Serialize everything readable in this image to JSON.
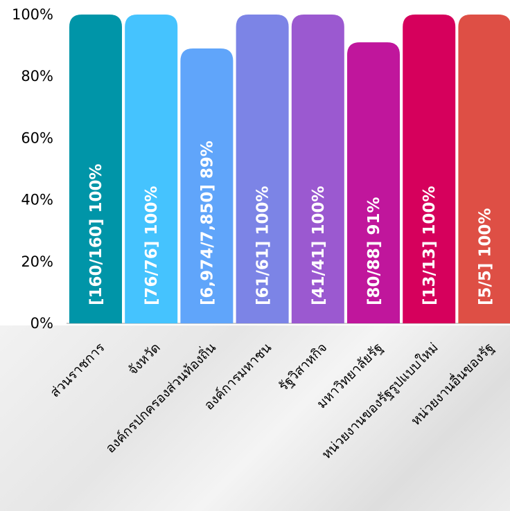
{
  "chart_data": {
    "type": "bar",
    "title": "",
    "xlabel": "",
    "ylabel": "",
    "ylim": [
      0,
      100
    ],
    "y_ticks": [
      "0%",
      "20%",
      "40%",
      "60%",
      "80%",
      "100%"
    ],
    "categories": [
      "ส่วนราชการ",
      "จังหวัด",
      "องค์กรปกครองส่วนท้องถิ่น",
      "องค์การมหาชน",
      "รัฐวิสาหกิจ",
      "มหาวิทยาลัยรัฐ",
      "หน่วยงานของรัฐรูปแบบใหม่",
      "หน่วยงานอื่นของรัฐ"
    ],
    "values": [
      100,
      100,
      89,
      100,
      100,
      91,
      100,
      100
    ],
    "data_labels": [
      "[160/160] 100%",
      "[76/76] 100%",
      "[6,974/7,850] 89%",
      "[61/61] 100%",
      "[41/41] 100%",
      "[80/88] 91%",
      "[13/13] 100%",
      "[5/5] 100%"
    ],
    "colors": [
      "#0095A8",
      "#45C3FE",
      "#60A5FA",
      "#7C84E6",
      "#9B59D0",
      "#C0169C",
      "#D6005C",
      "#DE4F45"
    ],
    "grid": false,
    "legend": "none"
  }
}
